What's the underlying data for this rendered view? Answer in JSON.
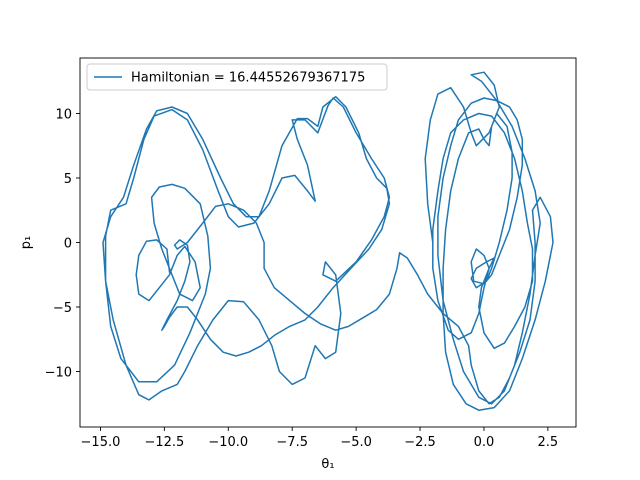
{
  "chart_data": {
    "type": "line",
    "title": "",
    "xlabel": "θ₁",
    "ylabel": "p₁",
    "xlim": [
      -15.8,
      3.6
    ],
    "ylim": [
      -14.3,
      14.3
    ],
    "xticks": [
      -15.0,
      -12.5,
      -10.0,
      -7.5,
      -5.0,
      -2.5,
      0.0,
      2.5
    ],
    "xtick_labels": [
      "−15.0",
      "−12.5",
      "−10.0",
      "−7.5",
      "−5.0",
      "−2.5",
      "0.0",
      "2.5"
    ],
    "yticks": [
      -10,
      -5,
      0,
      5,
      10
    ],
    "ytick_labels": [
      "−10",
      "−5",
      "0",
      "5",
      "10"
    ],
    "grid": false,
    "legend_position": "upper-left",
    "series": [
      {
        "name": "Hamiltonian = 16.44552679367175",
        "color": "#1f77b4",
        "points": [
          [
            -12.3,
            -2.3
          ],
          [
            -12.4,
            -0.5
          ],
          [
            -12.8,
            0.2
          ],
          [
            -13.2,
            0.1
          ],
          [
            -13.5,
            -1.0
          ],
          [
            -13.6,
            -2.5
          ],
          [
            -13.5,
            -4.0
          ],
          [
            -13.1,
            -4.5
          ],
          [
            -12.7,
            -3.5
          ],
          [
            -12.3,
            -2.5
          ],
          [
            -12.0,
            -1.0
          ],
          [
            -11.7,
            -0.3
          ],
          [
            -11.3,
            -1.5
          ],
          [
            -11.1,
            -3.5
          ],
          [
            -11.4,
            -4.5
          ],
          [
            -11.9,
            -4.0
          ],
          [
            -12.2,
            -2.5
          ],
          [
            -12.6,
            -0.5
          ],
          [
            -12.9,
            1.5
          ],
          [
            -13.0,
            3.5
          ],
          [
            -12.7,
            4.3
          ],
          [
            -12.2,
            4.5
          ],
          [
            -11.7,
            4.2
          ],
          [
            -11.1,
            3.0
          ],
          [
            -10.8,
            0.5
          ],
          [
            -10.7,
            -2.0
          ],
          [
            -10.9,
            -4.0
          ],
          [
            -11.5,
            -7.0
          ],
          [
            -12.1,
            -9.5
          ],
          [
            -12.8,
            -10.8
          ],
          [
            -13.5,
            -10.8
          ],
          [
            -14.2,
            -9.0
          ],
          [
            -14.6,
            -6.5
          ],
          [
            -14.8,
            -3.0
          ],
          [
            -14.8,
            0.5
          ],
          [
            -14.6,
            2.5
          ],
          [
            -14.0,
            3.0
          ],
          [
            -13.7,
            5.0
          ],
          [
            -13.3,
            8.0
          ],
          [
            -12.9,
            9.8
          ],
          [
            -12.2,
            10.3
          ],
          [
            -11.6,
            9.5
          ],
          [
            -11.0,
            7.2
          ],
          [
            -10.4,
            4.0
          ],
          [
            -10.0,
            2.0
          ],
          [
            -9.6,
            1.2
          ],
          [
            -9.0,
            1.5
          ],
          [
            -8.4,
            3.0
          ],
          [
            -7.9,
            5.0
          ],
          [
            -7.4,
            5.2
          ],
          [
            -6.9,
            4.0
          ],
          [
            -6.6,
            3.2
          ],
          [
            -6.9,
            6.0
          ],
          [
            -7.3,
            8.0
          ],
          [
            -7.5,
            9.5
          ],
          [
            -7.0,
            9.5
          ],
          [
            -6.5,
            8.5
          ],
          [
            -6.1,
            10.6
          ],
          [
            -5.9,
            11.2
          ],
          [
            -5.5,
            10.5
          ],
          [
            -5.0,
            8.5
          ],
          [
            -4.4,
            6.5
          ],
          [
            -3.9,
            5.0
          ],
          [
            -3.7,
            3.5
          ],
          [
            -3.9,
            2.0
          ],
          [
            -4.4,
            0.2
          ],
          [
            -5.0,
            -1.5
          ],
          [
            -5.8,
            -3.0
          ],
          [
            -6.3,
            -2.5
          ],
          [
            -6.2,
            -1.5
          ],
          [
            -5.8,
            -2.5
          ],
          [
            -5.6,
            -5.5
          ],
          [
            -5.8,
            -8.5
          ],
          [
            -6.2,
            -9.0
          ],
          [
            -6.6,
            -8.0
          ],
          [
            -7.0,
            -10.5
          ],
          [
            -7.5,
            -11.0
          ],
          [
            -8.0,
            -10.0
          ],
          [
            -8.3,
            -8.0
          ],
          [
            -8.8,
            -6.0
          ],
          [
            -9.4,
            -4.6
          ],
          [
            -10.0,
            -4.5
          ],
          [
            -10.6,
            -6.0
          ],
          [
            -11.2,
            -8.0
          ],
          [
            -11.7,
            -10.0
          ],
          [
            -12.0,
            -11.0
          ],
          [
            -12.6,
            -11.5
          ],
          [
            -13.1,
            -12.2
          ],
          [
            -13.5,
            -11.8
          ],
          [
            -14.0,
            -9.5
          ],
          [
            -14.5,
            -6.0
          ],
          [
            -14.8,
            -3.0
          ],
          [
            -14.9,
            0.0
          ],
          [
            -14.6,
            2.0
          ],
          [
            -14.1,
            3.5
          ],
          [
            -13.7,
            6.0
          ],
          [
            -13.2,
            8.8
          ],
          [
            -12.8,
            10.2
          ],
          [
            -12.2,
            10.5
          ],
          [
            -11.6,
            10.0
          ],
          [
            -11.0,
            8.0
          ],
          [
            -10.3,
            5.0
          ],
          [
            -9.8,
            3.0
          ],
          [
            -9.3,
            2.0
          ],
          [
            -8.8,
            2.0
          ],
          [
            -8.4,
            4.0
          ],
          [
            -7.9,
            7.5
          ],
          [
            -7.3,
            9.6
          ],
          [
            -6.9,
            9.6
          ],
          [
            -6.5,
            9.0
          ],
          [
            -6.3,
            10.5
          ],
          [
            -5.8,
            11.3
          ],
          [
            -5.4,
            10.5
          ],
          [
            -4.9,
            8.5
          ],
          [
            -4.6,
            6.5
          ],
          [
            -4.2,
            5.0
          ],
          [
            -3.8,
            4.2
          ],
          [
            -3.7,
            3.0
          ],
          [
            -4.0,
            1.0
          ],
          [
            -4.5,
            -0.5
          ],
          [
            -5.2,
            -2.0
          ],
          [
            -5.9,
            -3.5
          ],
          [
            -6.5,
            -5.0
          ],
          [
            -7.0,
            -6.0
          ],
          [
            -7.6,
            -6.5
          ],
          [
            -8.2,
            -7.2
          ],
          [
            -8.7,
            -8.0
          ],
          [
            -9.2,
            -8.5
          ],
          [
            -9.7,
            -8.8
          ],
          [
            -10.2,
            -8.5
          ],
          [
            -10.7,
            -7.5
          ],
          [
            -11.2,
            -6.0
          ],
          [
            -11.6,
            -5.0
          ],
          [
            -12.0,
            -5.0
          ],
          [
            -12.3,
            -5.8
          ],
          [
            -12.5,
            -6.5
          ],
          [
            -12.6,
            -6.8
          ],
          [
            -12.4,
            -6.0
          ],
          [
            -12.0,
            -4.5
          ],
          [
            -11.7,
            -3.0
          ],
          [
            -11.5,
            -1.5
          ],
          [
            -11.6,
            -0.2
          ],
          [
            -11.9,
            0.2
          ],
          [
            -12.1,
            -0.2
          ],
          [
            -12.0,
            -0.5
          ],
          [
            -11.6,
            0.0
          ],
          [
            -11.0,
            1.5
          ],
          [
            -10.5,
            2.8
          ],
          [
            -10.0,
            3.0
          ],
          [
            -9.4,
            2.5
          ],
          [
            -8.9,
            1.5
          ],
          [
            -8.6,
            0.0
          ],
          [
            -8.6,
            -2.0
          ],
          [
            -8.2,
            -3.5
          ],
          [
            -7.6,
            -4.5
          ],
          [
            -7.0,
            -5.5
          ],
          [
            -6.4,
            -6.3
          ],
          [
            -5.8,
            -6.8
          ],
          [
            -5.3,
            -6.5
          ],
          [
            -4.7,
            -5.8
          ],
          [
            -4.2,
            -5.2
          ],
          [
            -3.7,
            -4.0
          ],
          [
            -3.4,
            -2.0
          ],
          [
            -3.3,
            -0.8
          ],
          [
            -3.0,
            -1.2
          ],
          [
            -2.6,
            -2.5
          ],
          [
            -2.2,
            -4.0
          ],
          [
            -1.6,
            -5.5
          ],
          [
            -1.0,
            -6.5
          ],
          [
            -0.6,
            -8.0
          ],
          [
            -0.5,
            -9.5
          ],
          [
            -0.2,
            -11.5
          ],
          [
            0.2,
            -12.5
          ],
          [
            0.6,
            -12.0
          ],
          [
            1.0,
            -10.5
          ],
          [
            1.4,
            -8.5
          ],
          [
            1.8,
            -6.0
          ],
          [
            2.0,
            -3.0
          ],
          [
            2.0,
            0.0
          ],
          [
            1.9,
            2.5
          ],
          [
            2.2,
            3.5
          ],
          [
            2.6,
            2.0
          ],
          [
            2.7,
            0.0
          ],
          [
            2.4,
            -3.0
          ],
          [
            2.0,
            -6.0
          ],
          [
            1.5,
            -9.0
          ],
          [
            1.0,
            -11.5
          ],
          [
            0.4,
            -12.8
          ],
          [
            -0.2,
            -13.0
          ],
          [
            -0.7,
            -12.5
          ],
          [
            -1.2,
            -11.0
          ],
          [
            -1.5,
            -8.5
          ],
          [
            -1.6,
            -5.5
          ],
          [
            -1.6,
            -2.0
          ],
          [
            -1.5,
            1.0
          ],
          [
            -1.3,
            4.0
          ],
          [
            -1.0,
            6.5
          ],
          [
            -0.6,
            8.5
          ],
          [
            -0.2,
            8.8
          ],
          [
            0.0,
            8.0
          ],
          [
            0.2,
            7.5
          ],
          [
            0.3,
            9.0
          ],
          [
            0.5,
            10.0
          ],
          [
            0.9,
            9.0
          ],
          [
            1.1,
            7.0
          ],
          [
            1.1,
            5.0
          ],
          [
            0.9,
            2.5
          ],
          [
            0.6,
            0.0
          ],
          [
            0.3,
            -2.0
          ],
          [
            0.1,
            -3.0
          ],
          [
            -0.3,
            -3.5
          ],
          [
            -0.5,
            -2.8
          ],
          [
            -0.3,
            -2.0
          ],
          [
            0.1,
            -1.5
          ],
          [
            0.4,
            -1.2
          ],
          [
            0.2,
            -2.0
          ],
          [
            -0.1,
            -3.5
          ],
          [
            -0.2,
            -5.0
          ],
          [
            0.0,
            -7.0
          ],
          [
            0.4,
            -8.2
          ],
          [
            0.8,
            -7.8
          ],
          [
            1.2,
            -6.5
          ],
          [
            1.6,
            -5.0
          ],
          [
            1.9,
            -3.0
          ],
          [
            1.9,
            -0.5
          ],
          [
            1.7,
            1.5
          ],
          [
            1.5,
            4.0
          ],
          [
            1.2,
            6.5
          ],
          [
            0.8,
            8.5
          ],
          [
            0.3,
            9.8
          ],
          [
            -0.2,
            10.0
          ],
          [
            -0.8,
            9.5
          ],
          [
            -1.3,
            8.5
          ],
          [
            -1.6,
            6.5
          ],
          [
            -1.8,
            4.0
          ],
          [
            -2.0,
            1.0
          ],
          [
            -2.0,
            -2.0
          ],
          [
            -1.8,
            -4.5
          ],
          [
            -1.4,
            -6.8
          ],
          [
            -1.0,
            -7.5
          ],
          [
            -0.5,
            -7.0
          ],
          [
            -0.2,
            -5.5
          ],
          [
            0.0,
            -3.5
          ],
          [
            0.2,
            -2.0
          ],
          [
            0.0,
            -1.0
          ],
          [
            -0.3,
            -0.5
          ],
          [
            -0.5,
            -1.5
          ],
          [
            -0.4,
            -3.0
          ],
          [
            0.0,
            -3.2
          ],
          [
            0.3,
            -2.5
          ],
          [
            0.6,
            -1.0
          ],
          [
            1.0,
            1.0
          ],
          [
            1.3,
            3.5
          ],
          [
            1.5,
            6.0
          ],
          [
            1.5,
            8.0
          ],
          [
            1.3,
            9.5
          ],
          [
            1.0,
            10.5
          ],
          [
            0.5,
            11.0
          ],
          [
            0.0,
            11.2
          ],
          [
            -0.5,
            10.8
          ],
          [
            -1.0,
            9.5
          ],
          [
            -1.3,
            7.5
          ],
          [
            -1.6,
            5.0
          ],
          [
            -1.8,
            2.0
          ],
          [
            -1.8,
            -1.0
          ],
          [
            -1.6,
            -4.5
          ],
          [
            -1.2,
            -7.5
          ],
          [
            -0.8,
            -10.0
          ],
          [
            -0.2,
            -12.0
          ],
          [
            0.3,
            -12.5
          ],
          [
            0.8,
            -11.5
          ],
          [
            1.2,
            -9.5
          ],
          [
            1.5,
            -7.0
          ],
          [
            1.8,
            -4.0
          ],
          [
            2.0,
            -1.0
          ],
          [
            2.2,
            1.5
          ],
          [
            2.0,
            4.0
          ],
          [
            1.6,
            6.5
          ],
          [
            1.1,
            9.0
          ],
          [
            0.5,
            11.0
          ],
          [
            -0.1,
            12.5
          ],
          [
            -0.5,
            13.0
          ],
          [
            0.0,
            13.2
          ],
          [
            0.4,
            12.2
          ],
          [
            0.6,
            10.5
          ],
          [
            0.2,
            8.5
          ],
          [
            -0.3,
            7.5
          ],
          [
            -0.5,
            8.5
          ],
          [
            -0.8,
            10.5
          ],
          [
            -1.3,
            12.0
          ],
          [
            -1.8,
            11.5
          ],
          [
            -2.1,
            9.5
          ],
          [
            -2.3,
            6.5
          ],
          [
            -2.2,
            3.0
          ],
          [
            -2.0,
            0.0
          ]
        ]
      }
    ]
  }
}
